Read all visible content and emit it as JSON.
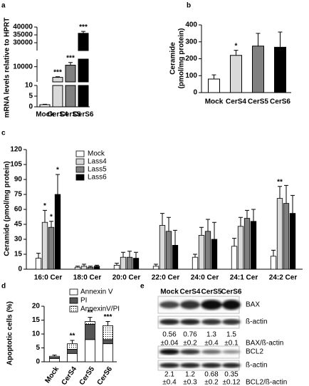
{
  "chart_data": [
    {
      "panel": "a",
      "type": "broken_bar",
      "ylabel": "mRNA levels relative to HPRT",
      "categories": [
        "Mock",
        "CerS4",
        "CerS5",
        "CerS6"
      ],
      "values": [
        1,
        3000,
        11000,
        36000
      ],
      "errors": [
        0.2,
        400,
        1800,
        1200
      ],
      "colors": [
        "#ffffff",
        "#d9d9d9",
        "#808080",
        "#000000"
      ],
      "significance": [
        null,
        "***",
        "***",
        "***"
      ],
      "axis_segments": [
        {
          "ylim": [
            0,
            10
          ],
          "yticks": [
            0,
            5,
            10
          ]
        },
        {
          "ylim": [
            10,
            15000
          ],
          "yticks": [
            10000
          ]
        },
        {
          "ylim": [
            25000,
            40000
          ],
          "yticks": [
            30000,
            35000,
            40000
          ]
        }
      ]
    },
    {
      "panel": "b",
      "type": "bar",
      "ylabel": [
        "Ceramide",
        "(pmol/mg protein)"
      ],
      "categories": [
        "Mock",
        "CerS4",
        "CerS5",
        "CerS6"
      ],
      "values": [
        80,
        220,
        275,
        268
      ],
      "errors": [
        25,
        30,
        75,
        90
      ],
      "colors": [
        "#ffffff",
        "#d9d9d9",
        "#808080",
        "#000000"
      ],
      "significance": [
        null,
        "*",
        null,
        null
      ],
      "ylim": [
        0,
        400
      ],
      "yticks": [
        0,
        100,
        200,
        300,
        400
      ]
    },
    {
      "panel": "c",
      "type": "grouped_bar",
      "ylabel": "Ceramide (pmol/mg protein)",
      "categories": [
        "16:0 Cer",
        "18:0 Cer",
        "20:0 Cer",
        "22:0 Cer",
        "24:0 Cer",
        "24:1 Cer",
        "24:2 Cer"
      ],
      "series": [
        {
          "name": "Mock",
          "color": "#ffffff",
          "values": [
            11,
            2,
            4,
            3,
            12,
            23,
            13
          ],
          "errors": [
            5,
            1,
            2,
            2,
            3,
            8,
            6
          ],
          "significance": [
            null,
            null,
            null,
            null,
            null,
            null,
            null
          ]
        },
        {
          "name": "Lass4",
          "color": "#d9d9d9",
          "values": [
            47,
            3,
            12,
            44,
            34,
            43,
            71
          ],
          "errors": [
            12,
            2,
            5,
            12,
            8,
            9,
            12
          ],
          "significance": [
            "*",
            null,
            null,
            null,
            null,
            null,
            "**"
          ]
        },
        {
          "name": "Lass5",
          "color": "#808080",
          "values": [
            42,
            2,
            12,
            38,
            38,
            51,
            66
          ],
          "errors": [
            6,
            1,
            6,
            14,
            12,
            8,
            18
          ],
          "significance": [
            "*",
            null,
            null,
            null,
            null,
            null,
            null
          ]
        },
        {
          "name": "Lass6",
          "color": "#000000",
          "values": [
            75,
            3,
            11,
            24,
            30,
            48,
            56
          ],
          "errors": [
            20,
            1,
            6,
            15,
            17,
            12,
            18
          ],
          "significance": [
            "*",
            null,
            null,
            null,
            null,
            null,
            null
          ]
        }
      ],
      "ylim": [
        0,
        120
      ],
      "yticks": [
        0,
        15,
        30,
        45,
        60,
        75,
        90,
        105,
        120
      ],
      "legend": "upper left"
    },
    {
      "panel": "d",
      "type": "stacked_bar",
      "ylabel": "Apoptotic cells (%)",
      "categories": [
        "Mock",
        "CerS4",
        "CerS5",
        "CerS6"
      ],
      "series": [
        {
          "name": "Annexin V",
          "color": "#ffffff",
          "values": [
            1.2,
            3,
            8,
            6.5
          ]
        },
        {
          "name": "PI",
          "color": "#555555",
          "values": [
            0.4,
            1.5,
            5.5,
            1.5
          ]
        },
        {
          "name": "AnnexinV/PI",
          "color": "#ffffff",
          "pattern": "dotted",
          "values": [
            0.4,
            2,
            1,
            5
          ]
        }
      ],
      "errors": [
        0.4,
        1.2,
        1.5,
        1.5
      ],
      "significance": [
        null,
        "**",
        "**",
        "***"
      ],
      "ylim": [
        0,
        20
      ],
      "yticks": [
        0,
        5,
        10,
        15,
        20
      ],
      "legend": "upper left"
    }
  ],
  "blot": {
    "panel": "e",
    "lanes": [
      "Mock",
      "CerS4",
      "CerS5",
      "CerS6"
    ],
    "bands": [
      "BAX",
      "ß-actin",
      "BCL2",
      "ß-actin"
    ],
    "ratios": [
      {
        "label": "BAX/ß-actin",
        "means": [
          "0.56",
          "0.76",
          "1.3",
          "1.5"
        ],
        "sds": [
          "±0.04",
          "±0.2",
          "±0.4",
          "±0.1"
        ]
      },
      {
        "label": "BCL2/ß-actin",
        "means": [
          "2.1",
          "1.2",
          "0.68",
          "0.35"
        ],
        "sds": [
          "±0.4",
          "±0.3",
          "±0.2",
          "±0.12"
        ]
      }
    ]
  }
}
